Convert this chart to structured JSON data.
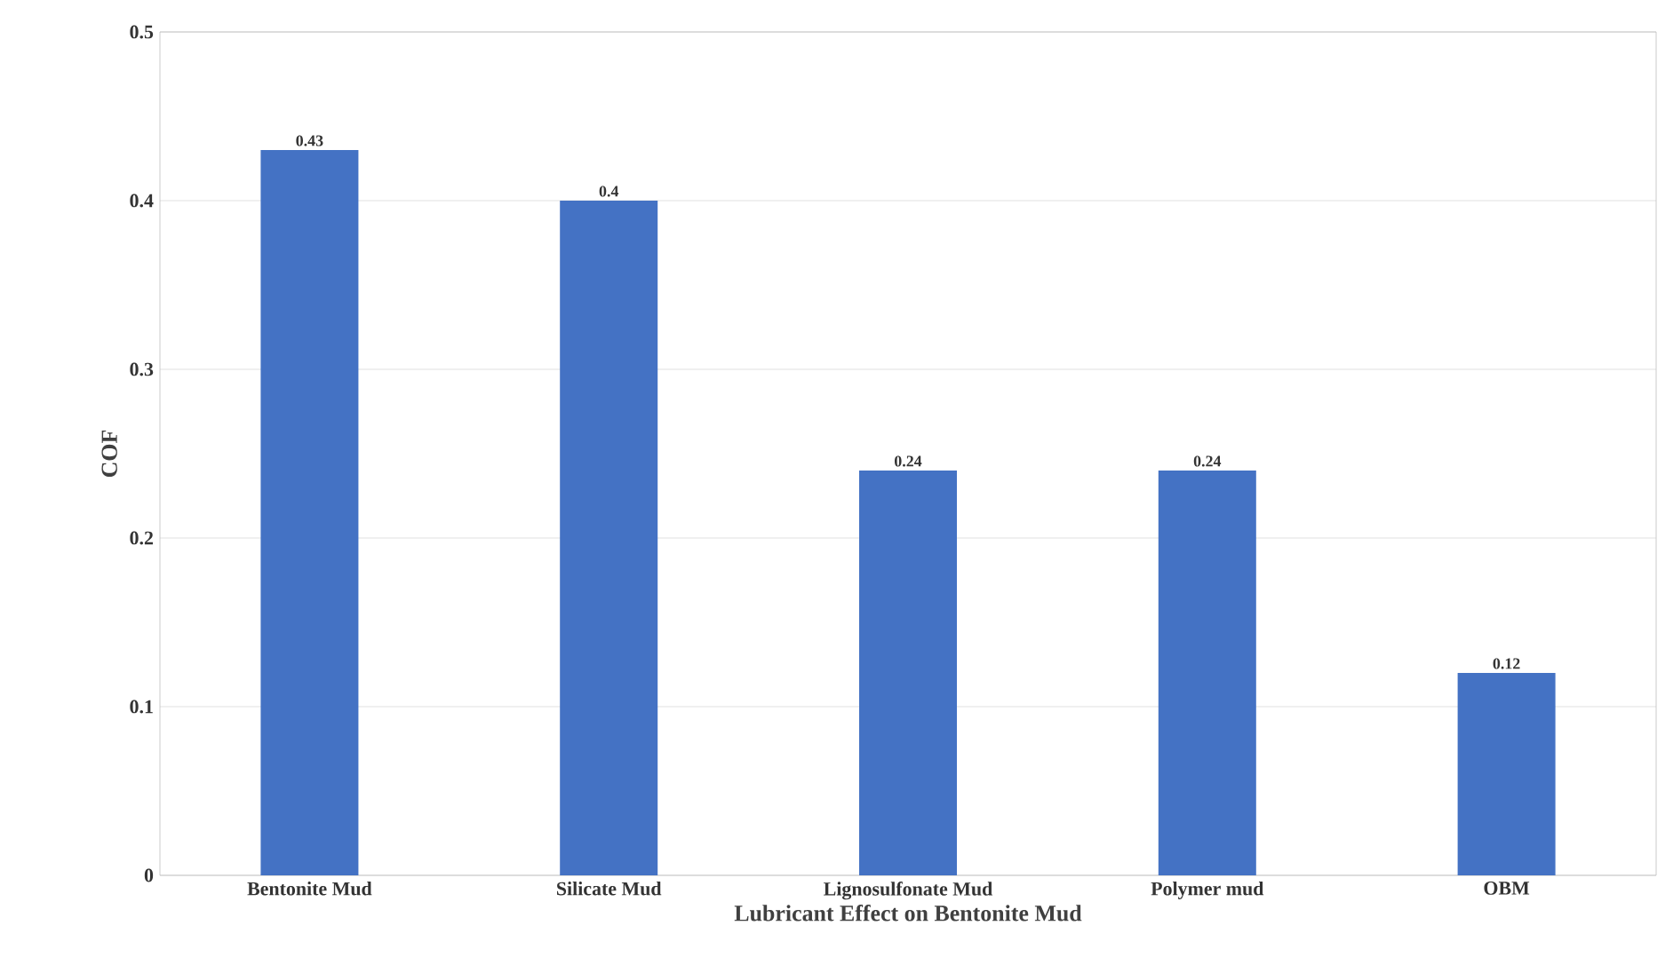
{
  "chart_data": {
    "type": "bar",
    "xlabel": "Lubricant Effect on Bentonite Mud",
    "ylabel": "COF",
    "categories": [
      "Bentonite Mud",
      "Silicate Mud",
      "Lignosulfonate Mud",
      "Polymer  mud",
      "OBM"
    ],
    "values": [
      0.43,
      0.4,
      0.24,
      0.24,
      0.12
    ],
    "color": "#4472c4",
    "ylim": [
      0,
      0.5
    ],
    "yticks": [
      0,
      0.1,
      0.2,
      0.3,
      0.4,
      0.5
    ],
    "grid": "y",
    "data_labels": true
  }
}
